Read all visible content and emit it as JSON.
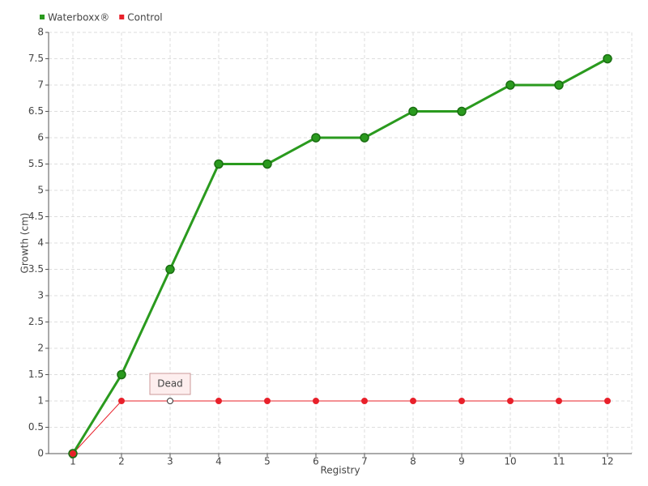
{
  "chart_data": {
    "type": "line",
    "x_label": "Registry",
    "y_label": "Growth (cm)",
    "categories": [
      "1",
      "2",
      "3",
      "4",
      "5",
      "6",
      "7",
      "8",
      "9",
      "10",
      "11",
      "12"
    ],
    "series": [
      {
        "name": "Waterboxx®",
        "color": "#2a9a1e",
        "values": [
          0,
          1.5,
          3.5,
          5.5,
          5.5,
          6,
          6,
          6.5,
          6.5,
          7,
          7,
          7.5
        ]
      },
      {
        "name": "Control",
        "color": "#e8202a",
        "values": [
          0,
          1,
          1,
          1,
          1,
          1,
          1,
          1,
          1,
          1,
          1,
          1
        ]
      }
    ],
    "annotations": [
      {
        "text": "Dead",
        "series": "Control",
        "category": "3"
      }
    ],
    "ylim": [
      0,
      8
    ],
    "yticks": [
      0,
      0.5,
      1,
      1.5,
      2,
      2.5,
      3,
      3.5,
      4,
      4.5,
      5,
      5.5,
      6,
      6.5,
      7,
      7.5,
      8
    ],
    "grid": true,
    "legend": "top-left"
  }
}
